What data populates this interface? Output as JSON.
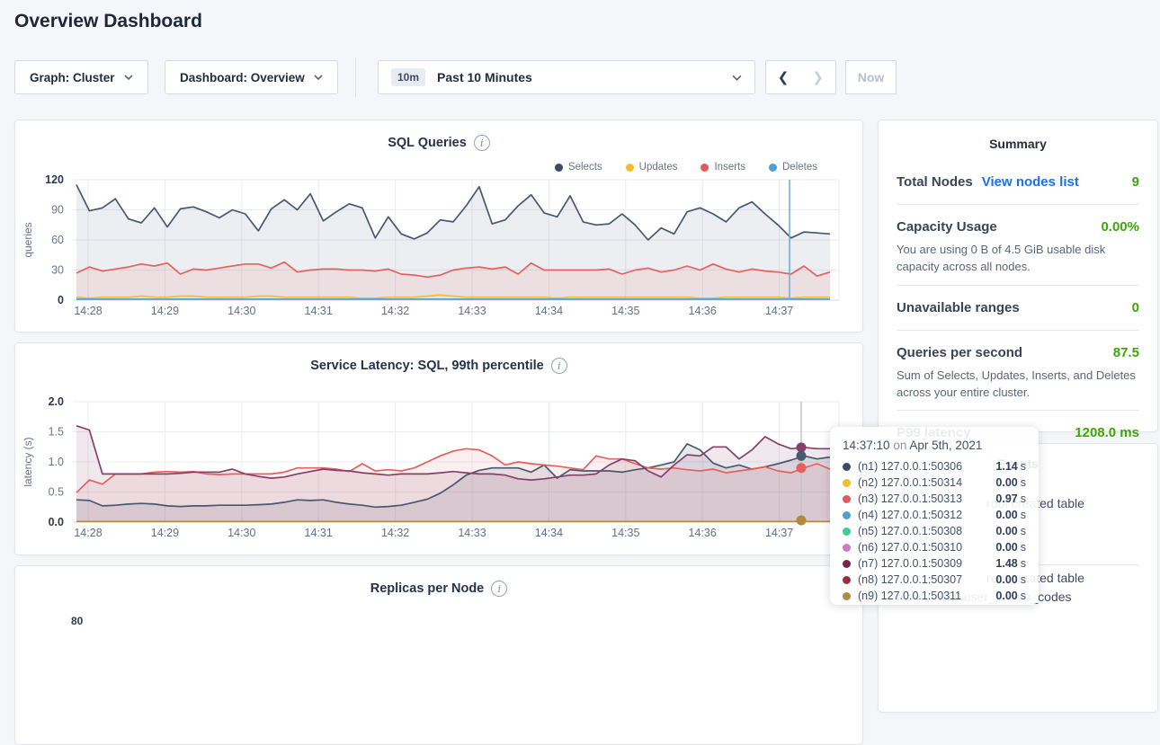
{
  "page": {
    "title": "Overview Dashboard"
  },
  "toolbar": {
    "graph_dropdown": "Graph: Cluster",
    "dashboard_dropdown": "Dashboard: Overview",
    "time_badge": "10m",
    "time_label": "Past 10 Minutes",
    "now_label": "Now"
  },
  "summary": {
    "title": "Summary",
    "rows": [
      {
        "label": "Total Nodes",
        "link": "View nodes list",
        "value": "9"
      },
      {
        "label": "Capacity Usage",
        "value": "0.00%",
        "desc": "You are using 0 B of 4.5 GiB usable disk capacity across all nodes."
      },
      {
        "label": "Unavailable ranges",
        "value": "0"
      },
      {
        "label": "Queries per second",
        "value": "87.5",
        "desc": "Sum of Selects, Updates, Inserts, and Deletes across your entire cluster."
      },
      {
        "label": "P99 latency",
        "value": "1208.0 ms"
      }
    ]
  },
  "events": {
    "title": "Events",
    "items": [
      {
        "line1": "root created table",
        "line2": ""
      },
      {
        "line1": "root created table",
        "line2": "movr.public.user_promo_codes"
      }
    ]
  },
  "tooltip": {
    "time": "14:37:10",
    "connector": "on",
    "date": "Apr 5th, 2021",
    "rows": [
      {
        "dot": "#3b4a63",
        "label": "(n1) 127.0.0.1:50306",
        "value": "1.14",
        "unit": "s"
      },
      {
        "dot": "#f2be2c",
        "label": "(n2) 127.0.0.1:50314",
        "value": "0.00",
        "unit": "s"
      },
      {
        "dot": "#e25a5a",
        "label": "(n3) 127.0.0.1:50313",
        "value": "0.97",
        "unit": "s"
      },
      {
        "dot": "#4f9ed8",
        "label": "(n4) 127.0.0.1:50312",
        "value": "0.00",
        "unit": "s"
      },
      {
        "dot": "#3dcf8e",
        "label": "(n5) 127.0.0.1:50308",
        "value": "0.00",
        "unit": "s"
      },
      {
        "dot": "#ce7bc4",
        "label": "(n6) 127.0.0.1:50310",
        "value": "0.00",
        "unit": "s"
      },
      {
        "dot": "#77234f",
        "label": "(n7) 127.0.0.1:50309",
        "value": "1.48",
        "unit": "s"
      },
      {
        "dot": "#9e2c3d",
        "label": "(n8) 127.0.0.1:50307",
        "value": "0.00",
        "unit": "s"
      },
      {
        "dot": "#ae8d3e",
        "label": "(n9) 127.0.0.1:50311",
        "value": "0.00",
        "unit": "s"
      }
    ]
  },
  "chart_data": [
    {
      "type": "line",
      "title": "SQL Queries",
      "ylabel": "queries",
      "ylim": [
        0,
        120
      ],
      "y_ticks": [
        0,
        30,
        60,
        90,
        120
      ],
      "y_tick_labels": [
        "0",
        "30",
        "60",
        "90",
        "120"
      ],
      "x_ticks": [
        "14:28",
        "14:29",
        "14:30",
        "14:31",
        "14:32",
        "14:33",
        "14:34",
        "14:35",
        "14:36",
        "14:37"
      ],
      "legend_position": "top-right",
      "hover_time": "14:37:10",
      "series": [
        {
          "name": "Selects",
          "color": "#47586f",
          "dot": "#3b4a63",
          "fill": "rgba(71,88,114,0.10)",
          "values": [
            115,
            89,
            92,
            101,
            81,
            77,
            92,
            73,
            91,
            93,
            88,
            82,
            90,
            86,
            69,
            91,
            100,
            90,
            106,
            79,
            88,
            96,
            92,
            62,
            83,
            66,
            61,
            67,
            80,
            78,
            94,
            113,
            76,
            80,
            94,
            105,
            87,
            83,
            104,
            78,
            75,
            76,
            86,
            75,
            60,
            72,
            66,
            88,
            92,
            86,
            78,
            92,
            98,
            86,
            75,
            62,
            68,
            67,
            66
          ]
        },
        {
          "name": "Updates",
          "color": "#f2be2c",
          "dot": "#f2be2c",
          "fill": null,
          "values": [
            3,
            2,
            3,
            3,
            3,
            4,
            3,
            3,
            4,
            4,
            3,
            3,
            3,
            3,
            4,
            4,
            3,
            3,
            3,
            3,
            3,
            3,
            2,
            2,
            3,
            3,
            3,
            4,
            5,
            4,
            3,
            3,
            3,
            3,
            3,
            3,
            3,
            2,
            3,
            3,
            3,
            3,
            3,
            3,
            3,
            3,
            3,
            3,
            2,
            2,
            3,
            3,
            3,
            3,
            3,
            2,
            3,
            3,
            3
          ]
        },
        {
          "name": "Inserts",
          "color": "#e5615e",
          "dot": "#e25a5a",
          "fill": "rgba(229,97,94,0.10)",
          "values": [
            27,
            33,
            29,
            31,
            33,
            36,
            34,
            37,
            26,
            31,
            30,
            32,
            34,
            36,
            36,
            32,
            38,
            28,
            30,
            31,
            31,
            30,
            30,
            29,
            31,
            26,
            25,
            23,
            25,
            30,
            32,
            33,
            31,
            33,
            26,
            37,
            30,
            30,
            30,
            30,
            30,
            31,
            26,
            30,
            32,
            28,
            30,
            34,
            30,
            36,
            31,
            28,
            31,
            29,
            28,
            26,
            34,
            24,
            28
          ]
        },
        {
          "name": "Deletes",
          "color": "#58a2d7",
          "dot": "#4f9ed8",
          "fill": null,
          "values": [
            1,
            1,
            1,
            1,
            1,
            1,
            1,
            1,
            1,
            1,
            1,
            1,
            1,
            1,
            1,
            1,
            1,
            1,
            1,
            1,
            1,
            1,
            1,
            1,
            1,
            1,
            1,
            1,
            1,
            1,
            1,
            1,
            1,
            1,
            1,
            1,
            1,
            1,
            1,
            1,
            1,
            1,
            1,
            1,
            1,
            1,
            1,
            1,
            1,
            1,
            1,
            1,
            1,
            1,
            1,
            1,
            1,
            1,
            1
          ]
        }
      ]
    },
    {
      "type": "line",
      "title": "Service Latency: SQL, 99th percentile",
      "ylabel": "latency (s)",
      "ylim": [
        0,
        2.0
      ],
      "y_ticks": [
        0,
        0.5,
        1.0,
        1.5,
        2.0
      ],
      "y_tick_labels": [
        "0.0",
        "0.5",
        "1.0",
        "1.5",
        "2.0"
      ],
      "x_ticks": [
        "14:28",
        "14:29",
        "14:30",
        "14:31",
        "14:32",
        "14:33",
        "14:34",
        "14:35",
        "14:36",
        "14:37"
      ],
      "hover_time": "14:37:10",
      "hover_dots": [
        {
          "color": "#84406b",
          "value": 1.24
        },
        {
          "color": "#47586f",
          "value": 1.1
        },
        {
          "color": "#e5615e",
          "value": 0.9
        },
        {
          "color": "#b5893c",
          "value": 0.03
        }
      ],
      "series": [
        {
          "name": "(n1) 127.0.0.1:50306",
          "color": "#47586f",
          "fill": "rgba(71,88,114,0.13)",
          "values": [
            0.37,
            0.36,
            0.27,
            0.28,
            0.3,
            0.31,
            0.3,
            0.27,
            0.26,
            0.27,
            0.27,
            0.28,
            0.28,
            0.28,
            0.29,
            0.3,
            0.33,
            0.37,
            0.36,
            0.37,
            0.33,
            0.3,
            0.28,
            0.25,
            0.26,
            0.28,
            0.33,
            0.38,
            0.48,
            0.62,
            0.78,
            0.86,
            0.9,
            0.9,
            0.9,
            0.83,
            0.95,
            0.73,
            0.87,
            0.85,
            0.85,
            0.85,
            0.83,
            0.87,
            0.9,
            0.95,
            1.0,
            1.3,
            1.2,
            0.98,
            0.9,
            0.95,
            0.88,
            0.92,
            0.97,
            1.03,
            1.1,
            1.05,
            1.08
          ]
        },
        {
          "name": "(n3) 127.0.0.1:50313",
          "color": "#e5615e",
          "fill": "rgba(229,97,94,0.10)",
          "values": [
            0.49,
            0.7,
            0.63,
            0.8,
            0.8,
            0.8,
            0.83,
            0.84,
            0.83,
            0.84,
            0.8,
            0.79,
            0.8,
            0.8,
            0.8,
            0.8,
            0.83,
            0.9,
            0.9,
            0.9,
            0.88,
            0.84,
            0.97,
            0.85,
            0.87,
            0.85,
            0.9,
            1.0,
            1.1,
            1.18,
            1.22,
            1.2,
            1.1,
            0.95,
            1.0,
            0.97,
            0.95,
            0.93,
            0.9,
            0.87,
            1.1,
            1.05,
            1.05,
            0.97,
            0.9,
            0.88,
            0.9,
            0.87,
            0.85,
            0.88,
            0.82,
            0.85,
            0.88,
            0.92,
            0.85,
            0.82,
            0.9,
            0.97,
            0.88
          ]
        },
        {
          "name": "(n7) 127.0.0.1:50309",
          "color": "#84406b",
          "fill": "rgba(132,64,107,0.12)",
          "values": [
            1.6,
            1.53,
            0.8,
            0.8,
            0.8,
            0.8,
            0.8,
            0.8,
            0.81,
            0.83,
            0.83,
            0.83,
            0.88,
            0.8,
            0.76,
            0.73,
            0.75,
            0.8,
            0.84,
            0.88,
            0.86,
            0.85,
            0.82,
            0.8,
            0.78,
            0.8,
            0.8,
            0.8,
            0.82,
            0.84,
            0.82,
            0.8,
            0.8,
            0.78,
            0.72,
            0.7,
            0.72,
            0.75,
            0.78,
            0.78,
            0.8,
            0.95,
            1.05,
            1.02,
            0.85,
            0.75,
            0.95,
            1.12,
            1.1,
            1.25,
            1.25,
            1.05,
            1.2,
            1.42,
            1.3,
            1.22,
            1.24,
            1.22,
            1.22
          ]
        },
        {
          "name": "(n9) 127.0.0.1:50311",
          "color": "#b5893c",
          "fill": null,
          "values": [
            0.01,
            0.01,
            0.01,
            0.01,
            0.01,
            0.01,
            0.01,
            0.01,
            0.01,
            0.01,
            0.01,
            0.01,
            0.01,
            0.01,
            0.01,
            0.01,
            0.01,
            0.01,
            0.01,
            0.01,
            0.01,
            0.01,
            0.01,
            0.01,
            0.01,
            0.01,
            0.01,
            0.01,
            0.01,
            0.01,
            0.01,
            0.01,
            0.01,
            0.01,
            0.01,
            0.01,
            0.01,
            0.01,
            0.01,
            0.01,
            0.01,
            0.01,
            0.01,
            0.01,
            0.01,
            0.01,
            0.01,
            0.01,
            0.01,
            0.01,
            0.01,
            0.01,
            0.01,
            0.01,
            0.01,
            0.01,
            0.01,
            0.01,
            0.01
          ]
        }
      ]
    },
    {
      "type": "line",
      "title": "Replicas per Node",
      "partial": true,
      "top_y_tick_label": "80"
    }
  ]
}
